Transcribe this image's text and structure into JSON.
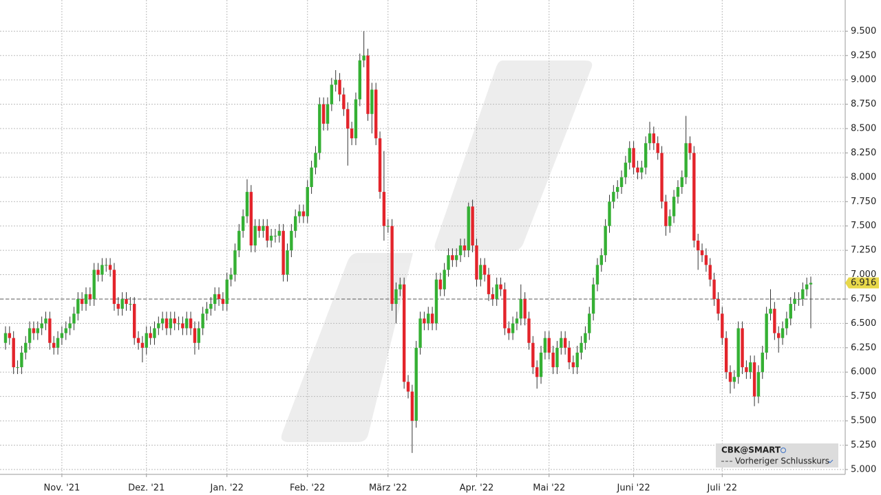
{
  "chart_data": {
    "type": "candlestick",
    "up_color": "#35b034",
    "down_color": "#e3242b",
    "grid": true,
    "ylim": [
      4.95,
      9.82
    ],
    "yticks": [
      {
        "value": 5,
        "label": "5.000"
      },
      {
        "value": 5.25,
        "label": "5.250"
      },
      {
        "value": 5.5,
        "label": "5.500"
      },
      {
        "value": 5.75,
        "label": "5.750"
      },
      {
        "value": 6,
        "label": "6.000"
      },
      {
        "value": 6.25,
        "label": "6.250"
      },
      {
        "value": 6.5,
        "label": "6.500"
      },
      {
        "value": 6.75,
        "label": "6.750"
      },
      {
        "value": 7,
        "label": "7.000"
      },
      {
        "value": 7.25,
        "label": "7.250"
      },
      {
        "value": 7.5,
        "label": "7.500"
      },
      {
        "value": 7.75,
        "label": "7.750"
      },
      {
        "value": 8,
        "label": "8.000"
      },
      {
        "value": 8.25,
        "label": "8.250"
      },
      {
        "value": 8.5,
        "label": "8.500"
      },
      {
        "value": 8.75,
        "label": "8.750"
      },
      {
        "value": 9,
        "label": "9.000"
      },
      {
        "value": 9.25,
        "label": "9.250"
      },
      {
        "value": 9.5,
        "label": "9.500"
      }
    ],
    "xticks": [
      {
        "value": 14,
        "label": "Nov. '21"
      },
      {
        "value": 35,
        "label": "Dez. '21"
      },
      {
        "value": 55,
        "label": "Jan. '22"
      },
      {
        "value": 75,
        "label": "Feb. '22"
      },
      {
        "value": 95,
        "label": "März '22"
      },
      {
        "value": 117,
        "label": "Apr. '22"
      },
      {
        "value": 135,
        "label": "Mai '22"
      },
      {
        "value": 156,
        "label": "Juni '22"
      },
      {
        "value": 178,
        "label": "Juli '22"
      }
    ],
    "open": [
      6.3,
      6.4,
      6.35,
      6.05,
      6.05,
      6.2,
      6.3,
      6.45,
      6.4,
      6.45,
      6.5,
      6.55,
      6.3,
      6.25,
      6.35,
      6.4,
      6.45,
      6.5,
      6.6,
      6.75,
      6.7,
      6.8,
      6.75,
      7.05,
      7.0,
      7.1,
      7.1,
      7.05,
      6.7,
      6.65,
      6.75,
      6.7,
      6.7,
      6.35,
      6.3,
      6.25,
      6.4,
      6.35,
      6.45,
      6.5,
      6.55,
      6.45,
      6.55,
      6.5,
      6.5,
      6.45,
      6.55,
      6.45,
      6.3,
      6.45,
      6.6,
      6.65,
      6.7,
      6.8,
      6.75,
      6.7,
      6.95,
      7.0,
      7.25,
      7.45,
      7.6,
      7.85,
      7.3,
      7.5,
      7.45,
      7.5,
      7.35,
      7.4,
      7.4,
      7.45,
      7.0,
      7.25,
      7.45,
      7.6,
      7.65,
      7.6,
      7.9,
      8.1,
      8.25,
      8.75,
      8.55,
      8.75,
      8.95,
      9.0,
      8.85,
      8.7,
      8.5,
      8.4,
      8.8,
      9.2,
      9.25,
      8.65,
      8.9,
      8.4,
      7.85,
      7.5,
      7.5,
      6.7,
      6.85,
      6.9,
      5.9,
      5.8,
      5.5,
      6.25,
      6.55,
      6.5,
      6.6,
      6.5,
      6.95,
      6.85,
      7.05,
      7.2,
      7.15,
      7.2,
      7.3,
      7.25,
      7.7,
      7.3,
      6.95,
      7.1,
      7.0,
      6.8,
      6.75,
      6.9,
      6.85,
      6.45,
      6.4,
      6.5,
      6.55,
      6.75,
      6.55,
      6.3,
      6.05,
      5.95,
      6.2,
      6.35,
      6.2,
      6.05,
      6.25,
      6.35,
      6.25,
      6.1,
      6.05,
      6.2,
      6.3,
      6.4,
      6.6,
      6.9,
      7.1,
      7.2,
      7.5,
      7.75,
      7.85,
      7.9,
      8.0,
      8.15,
      8.3,
      8.1,
      8.05,
      8.1,
      8.35,
      8.45,
      8.35,
      8.25,
      7.75,
      7.5,
      7.6,
      7.8,
      7.9,
      8.0,
      8.35,
      8.25,
      7.35,
      7.25,
      7.2,
      7.1,
      6.95,
      6.75,
      6.6,
      6.35,
      6.0,
      5.9,
      5.95,
      6.45,
      6.05,
      6.0,
      6.1,
      5.75,
      6.0,
      6.2,
      6.6,
      6.65,
      6.4,
      6.35,
      6.45,
      6.55,
      6.7,
      6.75,
      6.75,
      6.85,
      6.9
    ],
    "high": [
      6.47,
      6.47,
      6.42,
      6.12,
      6.27,
      6.37,
      6.52,
      6.52,
      6.52,
      6.57,
      6.62,
      6.62,
      6.37,
      6.42,
      6.47,
      6.52,
      6.57,
      6.67,
      6.82,
      6.82,
      6.87,
      6.87,
      7.12,
      7.12,
      7.17,
      7.17,
      7.17,
      7.12,
      6.77,
      6.82,
      6.82,
      6.77,
      6.77,
      6.42,
      6.37,
      6.47,
      6.47,
      6.52,
      6.57,
      6.62,
      6.62,
      6.62,
      6.62,
      6.57,
      6.57,
      6.62,
      6.62,
      6.52,
      6.52,
      6.67,
      6.72,
      6.77,
      6.87,
      6.87,
      6.82,
      7.02,
      7.07,
      7.32,
      7.52,
      7.67,
      7.98,
      7.92,
      7.57,
      7.57,
      7.57,
      7.57,
      7.47,
      7.47,
      7.52,
      7.52,
      7.32,
      7.52,
      7.67,
      7.72,
      7.72,
      7.97,
      8.17,
      8.32,
      8.82,
      8.82,
      8.82,
      9.02,
      9.1,
      9.07,
      8.92,
      8.77,
      8.57,
      8.87,
      9.27,
      9.5,
      9.32,
      8.97,
      8.97,
      8.47,
      8.27,
      7.57,
      7.57,
      6.92,
      6.97,
      6.97,
      5.97,
      5.87,
      6.32,
      6.62,
      6.62,
      6.67,
      6.67,
      7.02,
      7.02,
      7.12,
      7.27,
      7.27,
      7.27,
      7.37,
      7.37,
      7.74,
      7.77,
      7.37,
      7.17,
      7.17,
      7.07,
      6.87,
      6.97,
      6.97,
      6.92,
      6.52,
      6.57,
      6.62,
      6.9,
      6.82,
      6.62,
      6.37,
      6.12,
      6.27,
      6.42,
      6.42,
      6.27,
      6.32,
      6.42,
      6.42,
      6.32,
      6.17,
      6.27,
      6.37,
      6.47,
      6.67,
      6.97,
      7.17,
      7.27,
      7.57,
      7.82,
      7.92,
      7.97,
      8.07,
      8.22,
      8.37,
      8.37,
      8.17,
      8.17,
      8.42,
      8.57,
      8.52,
      8.42,
      8.32,
      7.82,
      7.67,
      7.87,
      7.97,
      8.07,
      8.63,
      8.42,
      8.32,
      7.42,
      7.32,
      7.27,
      7.17,
      7.02,
      6.82,
      6.67,
      6.42,
      6.07,
      6.02,
      6.52,
      6.52,
      6.12,
      6.17,
      6.17,
      6.07,
      6.27,
      6.67,
      6.85,
      6.72,
      6.47,
      6.52,
      6.62,
      6.77,
      6.82,
      6.82,
      6.92,
      6.97,
      6.98
    ],
    "low": [
      6.23,
      6.28,
      5.98,
      5.98,
      5.98,
      6.13,
      6.23,
      6.33,
      6.33,
      6.38,
      6.43,
      6.23,
      6.18,
      6.18,
      6.28,
      6.33,
      6.38,
      6.43,
      6.53,
      6.63,
      6.63,
      6.68,
      6.68,
      6.93,
      6.93,
      7.03,
      6.98,
      6.63,
      6.58,
      6.58,
      6.63,
      6.63,
      6.28,
      6.23,
      6.1,
      6.18,
      6.28,
      6.28,
      6.38,
      6.43,
      6.38,
      6.38,
      6.43,
      6.43,
      6.38,
      6.38,
      6.38,
      6.18,
      6.23,
      6.38,
      6.53,
      6.58,
      6.63,
      6.68,
      6.63,
      6.63,
      6.88,
      6.93,
      7.18,
      7.38,
      7.53,
      7.23,
      7.23,
      7.38,
      7.38,
      7.28,
      7.28,
      7.33,
      7.33,
      6.93,
      6.93,
      7.18,
      7.38,
      7.53,
      7.53,
      7.53,
      7.83,
      8.03,
      8.18,
      8.48,
      8.48,
      8.68,
      8.88,
      8.78,
      8.63,
      8.12,
      8.33,
      8.33,
      8.73,
      9.13,
      8.58,
      8.45,
      8.33,
      7.78,
      7.35,
      7.43,
      6.63,
      6.5,
      6.78,
      5.83,
      5.73,
      5.17,
      5.43,
      6.18,
      6.43,
      6.43,
      6.43,
      6.43,
      6.78,
      6.78,
      6.98,
      7.08,
      7.08,
      7.13,
      7.18,
      7.18,
      7.23,
      6.88,
      6.88,
      6.93,
      6.73,
      6.68,
      6.68,
      6.78,
      6.38,
      6.33,
      6.33,
      6.43,
      6.48,
      6.48,
      6.23,
      5.98,
      5.83,
      5.88,
      6.13,
      6.13,
      5.98,
      5.98,
      6.18,
      6.18,
      6.03,
      5.98,
      5.98,
      6.13,
      6.23,
      6.33,
      6.53,
      6.83,
      7.03,
      7.13,
      7.43,
      7.68,
      7.78,
      7.83,
      7.93,
      8.08,
      8.03,
      7.98,
      7.98,
      8.03,
      8.28,
      8.28,
      8.18,
      7.68,
      7.4,
      7.43,
      7.53,
      7.73,
      7.83,
      7.93,
      8.18,
      7.28,
      7.05,
      7.13,
      7.03,
      6.88,
      6.68,
      6.53,
      6.28,
      5.93,
      5.78,
      5.83,
      5.88,
      5.98,
      5.93,
      5.93,
      5.65,
      5.68,
      5.93,
      6.13,
      6.53,
      6.33,
      6.2,
      6.28,
      6.38,
      6.48,
      6.63,
      6.68,
      6.68,
      6.78,
      6.45
    ],
    "close": [
      6.4,
      6.35,
      6.05,
      6.05,
      6.2,
      6.3,
      6.45,
      6.4,
      6.45,
      6.5,
      6.55,
      6.3,
      6.25,
      6.35,
      6.4,
      6.45,
      6.5,
      6.6,
      6.75,
      6.7,
      6.8,
      6.75,
      7.05,
      7.0,
      7.1,
      7.1,
      7.05,
      6.7,
      6.65,
      6.75,
      6.7,
      6.7,
      6.35,
      6.3,
      6.25,
      6.4,
      6.35,
      6.45,
      6.5,
      6.55,
      6.45,
      6.55,
      6.5,
      6.5,
      6.45,
      6.55,
      6.45,
      6.3,
      6.45,
      6.6,
      6.65,
      6.7,
      6.8,
      6.75,
      6.7,
      6.95,
      7.0,
      7.25,
      7.45,
      7.6,
      7.85,
      7.3,
      7.5,
      7.45,
      7.5,
      7.35,
      7.4,
      7.4,
      7.45,
      7.0,
      7.25,
      7.45,
      7.6,
      7.65,
      7.6,
      7.9,
      8.1,
      8.25,
      8.75,
      8.55,
      8.75,
      8.95,
      9.0,
      8.85,
      8.7,
      8.5,
      8.4,
      8.8,
      9.2,
      9.25,
      8.65,
      8.9,
      8.4,
      7.85,
      7.5,
      7.5,
      6.7,
      6.85,
      6.9,
      5.9,
      5.8,
      5.5,
      6.25,
      6.55,
      6.5,
      6.6,
      6.5,
      6.95,
      6.85,
      7.05,
      7.2,
      7.15,
      7.2,
      7.3,
      7.25,
      7.7,
      7.3,
      6.95,
      7.1,
      7.0,
      6.8,
      6.75,
      6.9,
      6.85,
      6.45,
      6.4,
      6.5,
      6.55,
      6.75,
      6.55,
      6.3,
      6.05,
      5.95,
      6.2,
      6.35,
      6.2,
      6.05,
      6.25,
      6.35,
      6.25,
      6.1,
      6.05,
      6.2,
      6.3,
      6.4,
      6.6,
      6.9,
      7.1,
      7.2,
      7.5,
      7.75,
      7.85,
      7.9,
      8.0,
      8.15,
      8.3,
      8.1,
      8.05,
      8.1,
      8.35,
      8.45,
      8.35,
      8.25,
      7.75,
      7.5,
      7.6,
      7.8,
      7.9,
      8.0,
      8.35,
      8.25,
      7.35,
      7.25,
      7.2,
      7.1,
      6.95,
      6.75,
      6.6,
      6.35,
      6.0,
      5.9,
      5.95,
      6.45,
      6.05,
      6.0,
      6.1,
      5.75,
      6.0,
      6.2,
      6.6,
      6.65,
      6.4,
      6.35,
      6.45,
      6.55,
      6.7,
      6.75,
      6.75,
      6.85,
      6.9,
      6.916
    ],
    "previous_close": 6.75,
    "previous_close_color": "#777",
    "legend": {
      "symbol": "CBK@SMART",
      "previous_close_label": "Vorheriger Schlusskurs"
    }
  }
}
